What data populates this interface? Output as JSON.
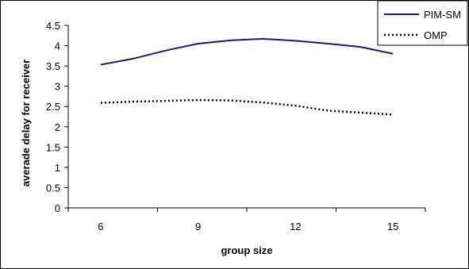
{
  "chart_data": {
    "type": "line",
    "title": "",
    "xlabel": "group size",
    "ylabel": "averade delay for receiver",
    "x_ticks": [
      6,
      9,
      12,
      15
    ],
    "y_ticks": [
      "0",
      "0.5",
      "1",
      "1.5",
      "2",
      "2.5",
      "3",
      "3.5",
      "4",
      "4.5"
    ],
    "xlim": [
      5,
      16
    ],
    "ylim": [
      0,
      4.5
    ],
    "grid": false,
    "legend_position": "top-right",
    "x": [
      6,
      7,
      8,
      9,
      10,
      11,
      12,
      13,
      14,
      15
    ],
    "series": [
      {
        "name": "PIM-SM",
        "color": "#1a1a7a",
        "style": "solid",
        "values": [
          3.53,
          3.68,
          3.88,
          4.05,
          4.13,
          4.17,
          4.12,
          4.05,
          3.97,
          3.8
        ]
      },
      {
        "name": "OMP",
        "color": "#000000",
        "style": "dotted",
        "values": [
          2.59,
          2.62,
          2.64,
          2.66,
          2.65,
          2.6,
          2.52,
          2.4,
          2.35,
          2.3
        ]
      }
    ]
  }
}
